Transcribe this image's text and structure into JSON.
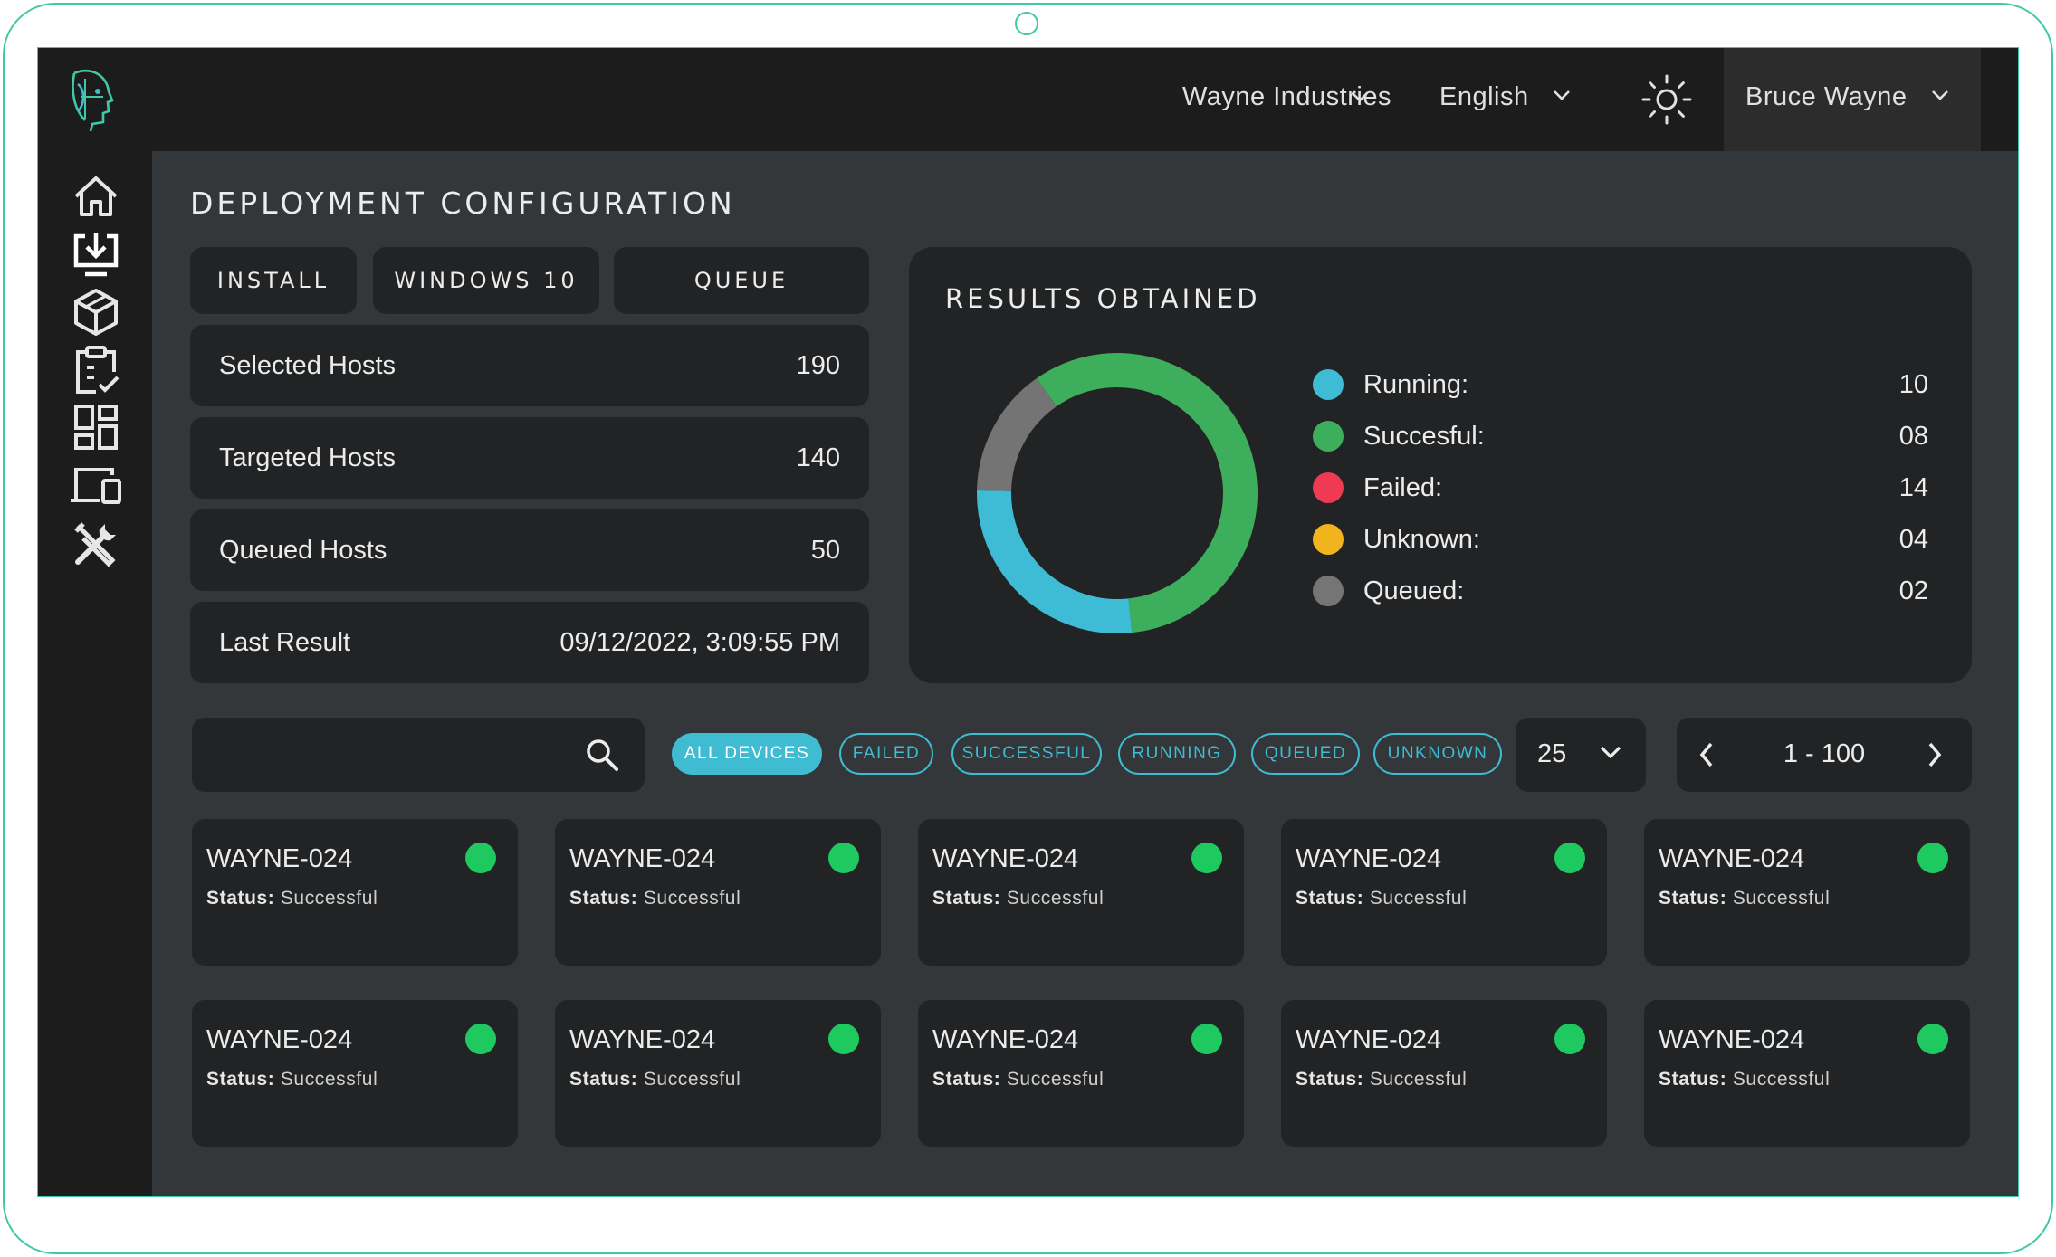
{
  "header": {
    "organization": "Wayne Industries",
    "language": "English",
    "user_name": "Bruce Wayne"
  },
  "sidebar": {
    "items": [
      {
        "icon": "home-icon"
      },
      {
        "icon": "deploy-icon"
      },
      {
        "icon": "package-icon"
      },
      {
        "icon": "clipboard-check-icon"
      },
      {
        "icon": "dashboard-icon"
      },
      {
        "icon": "devices-icon"
      },
      {
        "icon": "tools-icon"
      }
    ]
  },
  "page": {
    "title": "DEPLOYMENT CONFIGURATION",
    "tabs": [
      "INSTALL",
      "WINDOWS 10",
      "QUEUE"
    ]
  },
  "stats": [
    {
      "label": "Selected Hosts",
      "value": "190"
    },
    {
      "label": "Targeted Hosts",
      "value": "140"
    },
    {
      "label": "Queued Hosts",
      "value": "50"
    },
    {
      "label": "Last Result",
      "value": "09/12/2022, 3:09:55 PM"
    }
  ],
  "results": {
    "title": "RESULTS OBTAINED",
    "legend": [
      {
        "label": "Running:",
        "value": "10",
        "color": "#3fbcd5"
      },
      {
        "label": "Succesful:",
        "value": "08",
        "color": "#3cae5c"
      },
      {
        "label": "Failed:",
        "value": "14",
        "color": "#ee3a52"
      },
      {
        "label": "Unknown:",
        "value": "04",
        "color": "#f2b41e"
      },
      {
        "label": "Queued:",
        "value": "02",
        "color": "#757575"
      }
    ]
  },
  "chart_data": {
    "type": "pie",
    "variant": "donut",
    "categories": [
      "Successful",
      "Running",
      "Queued"
    ],
    "values": [
      0.58,
      0.27,
      0.15
    ],
    "colors": [
      "#3cae5c",
      "#3fbcd5",
      "#747474"
    ]
  },
  "filters": {
    "search_placeholder": "",
    "chips": [
      {
        "label": "ALL DEVICES",
        "active": true
      },
      {
        "label": "FAILED",
        "active": false
      },
      {
        "label": "SUCCESSFUL",
        "active": false
      },
      {
        "label": "RUNNING",
        "active": false
      },
      {
        "label": "QUEUED",
        "active": false
      },
      {
        "label": "UNKNOWN",
        "active": false
      }
    ],
    "page_size": "25",
    "range": "1 - 100"
  },
  "devices": [
    {
      "name": "WAYNE-024",
      "status_label": "Status:",
      "status": "Successful",
      "color": "#1ec95f"
    },
    {
      "name": "WAYNE-024",
      "status_label": "Status:",
      "status": "Successful",
      "color": "#1ec95f"
    },
    {
      "name": "WAYNE-024",
      "status_label": "Status:",
      "status": "Successful",
      "color": "#1ec95f"
    },
    {
      "name": "WAYNE-024",
      "status_label": "Status:",
      "status": "Successful",
      "color": "#1ec95f"
    },
    {
      "name": "WAYNE-024",
      "status_label": "Status:",
      "status": "Successful",
      "color": "#1ec95f"
    },
    {
      "name": "WAYNE-024",
      "status_label": "Status:",
      "status": "Successful",
      "color": "#1ec95f"
    },
    {
      "name": "WAYNE-024",
      "status_label": "Status:",
      "status": "Successful",
      "color": "#1ec95f"
    },
    {
      "name": "WAYNE-024",
      "status_label": "Status:",
      "status": "Successful",
      "color": "#1ec95f"
    },
    {
      "name": "WAYNE-024",
      "status_label": "Status:",
      "status": "Successful",
      "color": "#1ec95f"
    },
    {
      "name": "WAYNE-024",
      "status_label": "Status:",
      "status": "Successful",
      "color": "#1ec95f"
    }
  ]
}
